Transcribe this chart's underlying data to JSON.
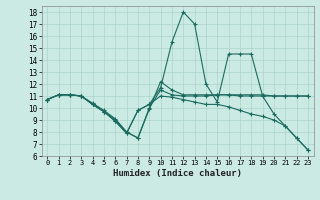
{
  "xlabel": "Humidex (Indice chaleur)",
  "bg_color": "#cceae4",
  "line_color": "#1a6b5e",
  "grid_color": "#aad4cc",
  "xlim": [
    -0.5,
    23.5
  ],
  "ylim": [
    6,
    18.5
  ],
  "xticks": [
    0,
    1,
    2,
    3,
    4,
    5,
    6,
    7,
    8,
    9,
    10,
    11,
    12,
    13,
    14,
    15,
    16,
    17,
    18,
    19,
    20,
    21,
    22,
    23
  ],
  "yticks": [
    6,
    7,
    8,
    9,
    10,
    11,
    12,
    13,
    14,
    15,
    16,
    17,
    18
  ],
  "line_data": {
    "line1": {
      "x": [
        0,
        1,
        2,
        3,
        4,
        5,
        6,
        7,
        8,
        9,
        10,
        11,
        12,
        13,
        14,
        15,
        16,
        17,
        18,
        19,
        20,
        21,
        22,
        23
      ],
      "y": [
        10.7,
        11.1,
        11.1,
        11.0,
        10.4,
        9.8,
        9.1,
        8.0,
        7.5,
        10.0,
        11.5,
        11.1,
        11.0,
        11.0,
        11.0,
        11.1,
        11.1,
        11.0,
        11.0,
        11.0,
        11.0,
        11.0,
        11.0,
        11.0
      ]
    },
    "line2": {
      "x": [
        0,
        1,
        2,
        3,
        4,
        5,
        6,
        7,
        8,
        9,
        10,
        11,
        12,
        13,
        14,
        15,
        16,
        17,
        18,
        19,
        20,
        21,
        22,
        23
      ],
      "y": [
        10.7,
        11.1,
        11.1,
        11.0,
        10.3,
        9.7,
        9.0,
        8.0,
        7.5,
        9.9,
        12.2,
        11.5,
        11.1,
        11.1,
        11.1,
        11.1,
        11.1,
        11.1,
        11.1,
        11.1,
        11.0,
        11.0,
        11.0,
        11.0
      ]
    },
    "line3": {
      "x": [
        0,
        1,
        2,
        3,
        4,
        5,
        6,
        7,
        8,
        9,
        10,
        11,
        12,
        13,
        14,
        15,
        16,
        17,
        18,
        19,
        20,
        21,
        22,
        23
      ],
      "y": [
        10.7,
        11.1,
        11.1,
        11.0,
        10.3,
        9.7,
        8.9,
        7.9,
        9.8,
        10.3,
        11.7,
        15.5,
        18.0,
        17.0,
        12.0,
        10.5,
        14.5,
        14.5,
        14.5,
        11.0,
        9.5,
        8.5,
        7.5,
        6.5
      ]
    },
    "line4": {
      "x": [
        0,
        1,
        2,
        3,
        4,
        5,
        6,
        7,
        8,
        9,
        10,
        11,
        12,
        13,
        14,
        15,
        16,
        17,
        18,
        19,
        20,
        21,
        22,
        23
      ],
      "y": [
        10.7,
        11.1,
        11.1,
        11.0,
        10.3,
        9.7,
        8.9,
        7.9,
        9.8,
        10.3,
        11.0,
        10.9,
        10.7,
        10.5,
        10.3,
        10.3,
        10.1,
        9.8,
        9.5,
        9.3,
        9.0,
        8.5,
        7.5,
        6.5
      ]
    }
  }
}
